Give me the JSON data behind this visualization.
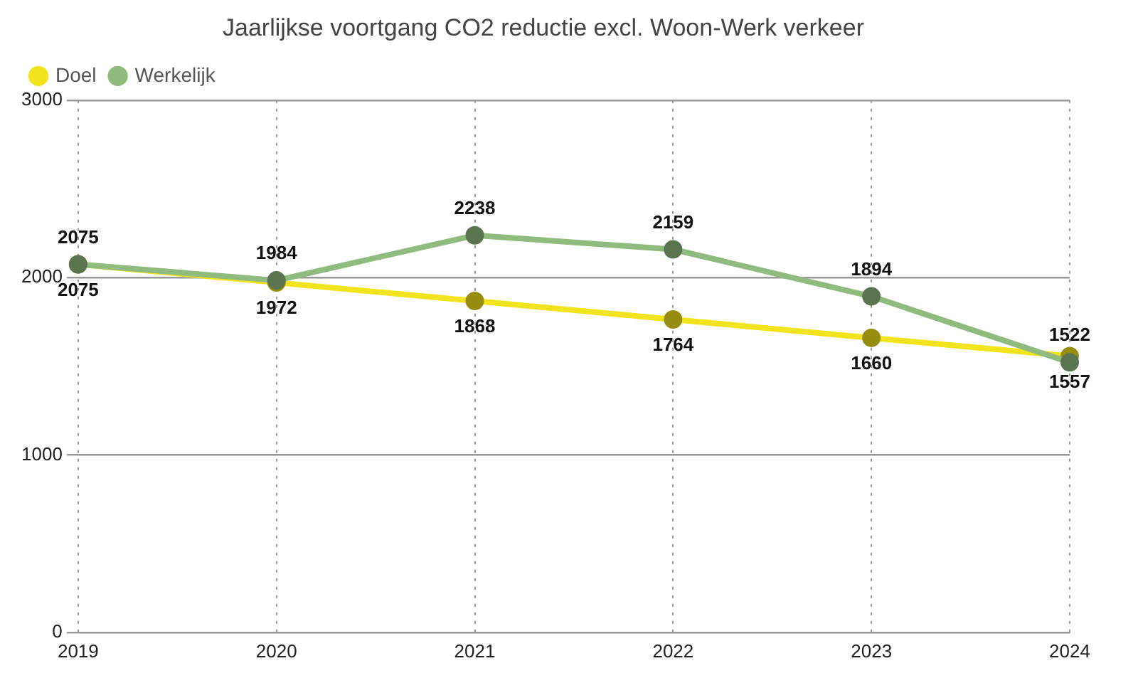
{
  "chart_data": {
    "type": "line",
    "title": "Jaarlijkse voortgang CO2 reductie excl. Woon-Werk verkeer",
    "categories": [
      "2019",
      "2020",
      "2021",
      "2022",
      "2023",
      "2024"
    ],
    "series": [
      {
        "name": "Doel",
        "color": "#f2e41c",
        "values": [
          2075,
          1972,
          1868,
          1764,
          1660,
          1557
        ]
      },
      {
        "name": "Werkelijk",
        "color": "#8fbb7e",
        "values": [
          2075,
          1984,
          2238,
          2159,
          1894,
          1522
        ]
      }
    ],
    "ylim": [
      0,
      3000
    ],
    "yticks": [
      0,
      1000,
      2000,
      3000
    ],
    "grid": true,
    "legend": "top left",
    "marker": "circle",
    "line_style": "solid",
    "data_labels": true
  }
}
